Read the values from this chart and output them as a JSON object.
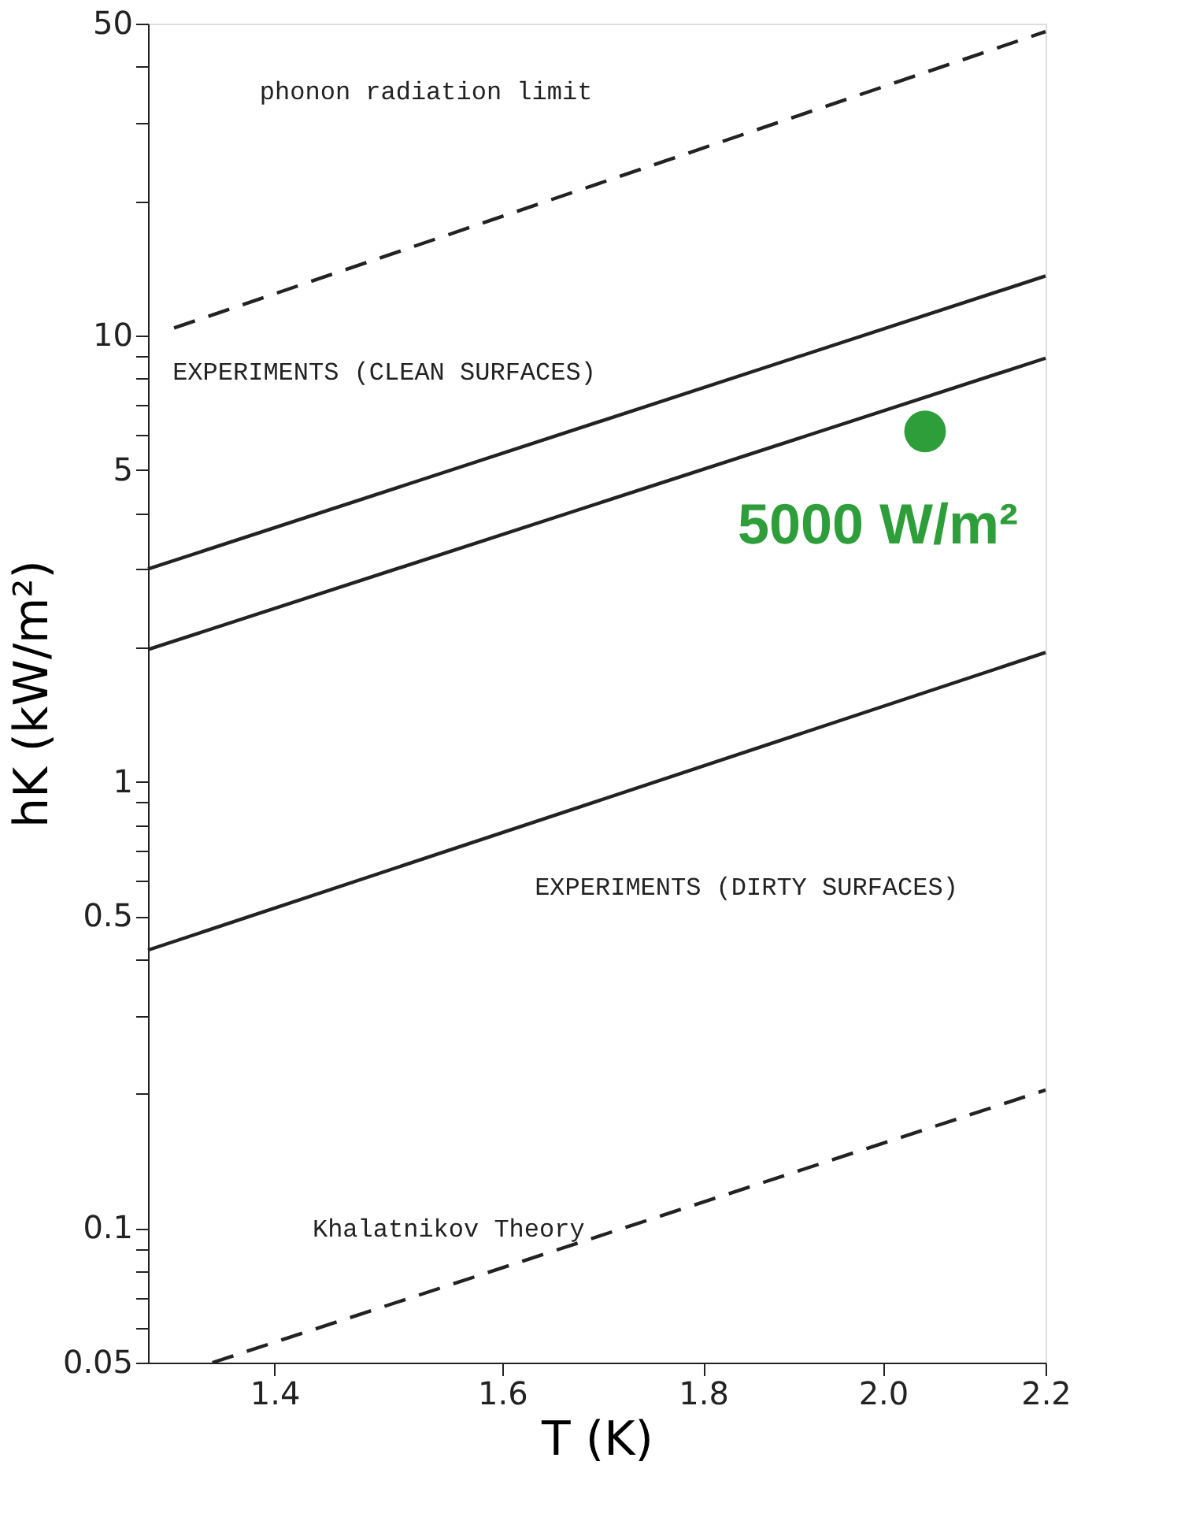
{
  "chart_data": {
    "type": "line",
    "xlabel": "T (K)",
    "ylabel": "hK (kW/m²)",
    "log": "xy",
    "grid": false,
    "xlim": [
      1.3,
      2.2
    ],
    "xticks": [
      1.4,
      1.6,
      1.8,
      {
        "value": 2,
        "label": "2.0"
      },
      2.2
    ],
    "ylim": [
      0.05,
      50
    ],
    "yticks": [
      0.05,
      {
        "value": 0.06,
        "label": null
      },
      {
        "value": 0.07,
        "label": null
      },
      {
        "value": 0.08,
        "label": null
      },
      {
        "value": 0.09,
        "label": null
      },
      0.1,
      {
        "value": 0.2,
        "label": null
      },
      {
        "value": 0.3,
        "label": null
      },
      {
        "value": 0.4,
        "label": null
      },
      0.5,
      {
        "value": 0.6,
        "label": null
      },
      {
        "value": 0.7,
        "label": null
      },
      {
        "value": 0.8,
        "label": null
      },
      {
        "value": 0.9,
        "label": null
      },
      1,
      {
        "value": 2,
        "label": null
      },
      {
        "value": 3,
        "label": null
      },
      {
        "value": 4,
        "label": null
      },
      5,
      {
        "value": 6,
        "label": null
      },
      {
        "value": 7,
        "label": null
      },
      {
        "value": 8,
        "label": null
      },
      {
        "value": 9,
        "label": null
      },
      10,
      {
        "value": 20,
        "label": null
      },
      {
        "value": 30,
        "label": null
      },
      {
        "value": 40,
        "label": null
      },
      50
    ],
    "series": [
      {
        "name": "phonon radiation limit",
        "line_style": "dashed",
        "color": "#222222",
        "x": [
          1.32,
          2.2
        ],
        "values": [
          10.4,
          48
        ]
      },
      {
        "name": "EXPERIMENTS (CLEAN SURFACES)",
        "line_style": "solid",
        "color": "#222222",
        "x": [
          1.3,
          2.2
        ],
        "values": [
          3.0,
          13.6
        ]
      },
      {
        "line_style": "solid",
        "color": "#222222",
        "x": [
          1.3,
          2.2
        ],
        "values": [
          1.98,
          8.9
        ]
      },
      {
        "name": "EXPERIMENTS (DIRTY SURFACES)",
        "line_style": "solid",
        "color": "#222222",
        "x": [
          1.3,
          2.2
        ],
        "values": [
          0.42,
          1.95
        ]
      },
      {
        "name": "Khalatnikov Theory",
        "line_style": "dashed",
        "color": "#222222",
        "x": [
          1.35,
          2.2
        ],
        "values": [
          0.05,
          0.204
        ]
      },
      {
        "type": "scatter",
        "marker": "circle",
        "name": "5000 W/m²",
        "color": "#2e9e3a",
        "x": [
          2.05
        ],
        "values": [
          6.1
        ]
      }
    ]
  }
}
